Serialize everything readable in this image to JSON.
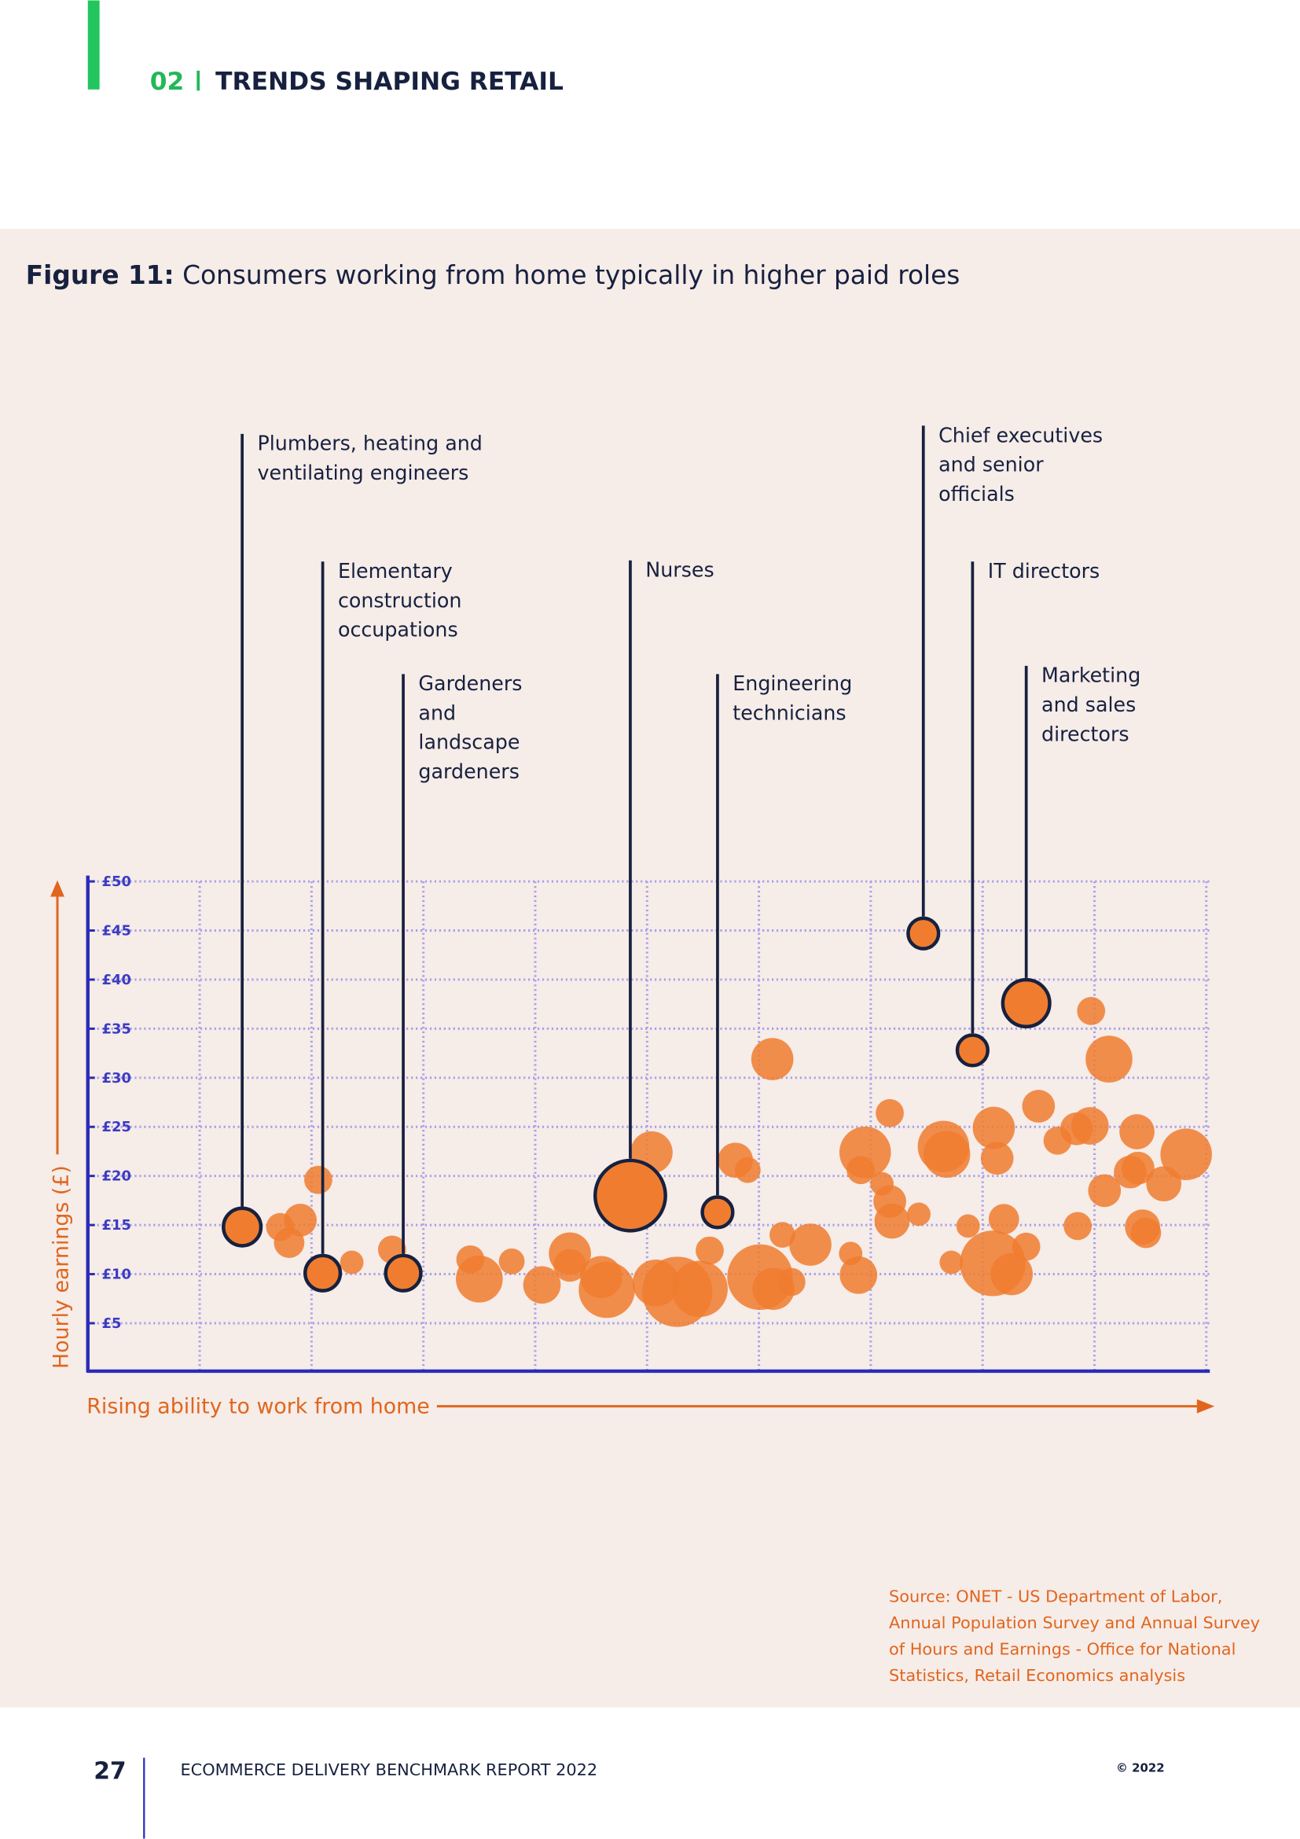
{
  "header": {
    "section": "02",
    "title": "TRENDS SHAPING RETAIL"
  },
  "figure": {
    "label": "Figure 11:",
    "chart_data": {
      "type": "bubble",
      "title": "Consumers working from home typically in higher paid roles",
      "x_label": "Rising ability to work from home",
      "y_label": "Hourly earnings (£)",
      "xlim": [
        0,
        10
      ],
      "xticks": [
        1,
        2,
        3,
        4,
        5,
        6,
        7,
        8,
        9,
        10
      ],
      "ylim": [
        0,
        50
      ],
      "yticks": [
        {
          "value": 5,
          "label": "£5"
        },
        {
          "value": 10,
          "label": "£10"
        },
        {
          "value": 15,
          "label": "£15"
        },
        {
          "value": 20,
          "label": "£20"
        },
        {
          "value": 25,
          "label": "£25"
        },
        {
          "value": 30,
          "label": "£30"
        },
        {
          "value": 35,
          "label": "£35"
        },
        {
          "value": 40,
          "label": "£40"
        },
        {
          "value": 45,
          "label": "£45"
        },
        {
          "value": 50,
          "label": "£50"
        }
      ],
      "grid": true,
      "series": [
        {
          "color": "#f07d2f",
          "x": [
            1.72,
            1.9,
            1.8,
            2.06,
            2.36,
            2.72,
            3.42,
            3.5,
            3.79,
            4.06,
            4.31,
            4.31,
            4.59,
            4.64,
            5.04,
            5.08,
            5.27,
            5.47,
            5.56,
            5.79,
            5.9,
            6.01,
            6.13,
            6.29,
            6.12,
            6.21,
            6.46,
            6.82,
            6.89,
            6.95,
            6.91,
            7.17,
            7.1,
            7.17,
            7.19,
            7.43,
            7.65,
            7.68,
            7.72,
            7.87,
            8.1,
            8.13,
            8.19,
            8.09,
            8.26,
            8.39,
            8.5,
            8.67,
            8.85,
            8.84,
            8.96,
            8.97,
            9.13,
            9.09,
            9.32,
            9.38,
            9.39,
            9.43,
            9.46,
            9.62,
            9.82
          ],
          "values": [
            14.8,
            15.5,
            13.2,
            19.6,
            11.2,
            12.5,
            11.5,
            9.5,
            11.3,
            8.9,
            12.1,
            10.9,
            9.7,
            8.4,
            22.4,
            9.1,
            8.2,
            8.5,
            12.4,
            21.6,
            20.6,
            9.7,
            8.5,
            9.2,
            31.9,
            14.0,
            13.0,
            12.1,
            9.9,
            22.4,
            20.6,
            26.4,
            19.2,
            17.4,
            15.4,
            16.1,
            23.0,
            22.2,
            11.2,
            14.9,
            24.9,
            21.8,
            15.6,
            11.1,
            10.0,
            12.8,
            27.1,
            23.6,
            14.9,
            24.8,
            25.1,
            36.8,
            31.9,
            18.5,
            20.4,
            24.5,
            20.8,
            14.8,
            14.2,
            19.2,
            22.2
          ],
          "sizes": [
            12,
            14,
            13,
            12,
            10,
            12,
            12,
            20,
            11,
            16,
            18,
            14,
            18,
            24,
            18,
            20,
            30,
            24,
            12,
            15,
            11,
            28,
            18,
            12,
            18,
            11,
            18,
            10,
            16,
            22,
            12,
            12,
            10,
            14,
            15,
            10,
            22,
            20,
            10,
            10,
            18,
            14,
            13,
            28,
            18,
            12,
            14,
            12,
            12,
            14,
            16,
            12,
            20,
            14,
            14,
            15,
            14,
            15,
            13,
            15,
            22
          ]
        },
        {
          "color": "#f07d2f",
          "outline": "#17213f",
          "x": [
            1.38,
            2.1,
            2.82,
            4.85,
            5.63,
            7.47,
            7.91,
            8.39
          ],
          "values": [
            14.8,
            10.1,
            10.1,
            18.0,
            16.3,
            44.7,
            32.8,
            37.6
          ],
          "sizes": [
            16,
            15,
            15,
            30,
            13,
            13,
            13,
            20
          ],
          "labels": [
            [
              "Plumbers, heating and",
              "ventilating engineers"
            ],
            [
              "Elementary",
              "construction",
              "occupations"
            ],
            [
              "Gardeners",
              "and",
              "landscape",
              "gardeners"
            ],
            [
              "Nurses"
            ],
            [
              "Engineering",
              "technicians"
            ],
            [
              "Chief executives",
              "and senior",
              "officials"
            ],
            [
              "IT directors"
            ],
            [
              "Marketing",
              "and sales",
              "directors"
            ]
          ]
        }
      ]
    },
    "source": [
      "Source: ONET - US Department of Labor,",
      "Annual Population Survey and Annual Survey",
      "of Hours and Earnings - Office for National",
      "Statistics, Retail Economics analysis"
    ]
  },
  "footer": {
    "page": "27",
    "report": "ECOMMERCE DELIVERY BENCHMARK REPORT 2022",
    "copyright": "© 2022"
  }
}
